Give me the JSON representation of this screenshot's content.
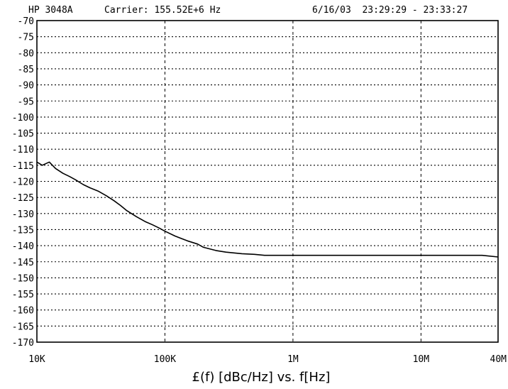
{
  "header": {
    "instrument": "HP 3048A",
    "carrier": "Carrier: 155.52E+6 Hz",
    "date_time": "6/16/03  23:29:29 - 23:33:27"
  },
  "chart_data": {
    "type": "line",
    "title": "",
    "xlabel": "£(f) [dBc/Hz] vs. f[Hz]",
    "ylabel": "",
    "x_scale": "log",
    "xlim": [
      10000,
      40000000
    ],
    "ylim": [
      -170,
      -70
    ],
    "grid": true,
    "y_ticks": [
      -70,
      -75,
      -80,
      -85,
      -90,
      -95,
      -100,
      -105,
      -110,
      -115,
      -120,
      -125,
      -130,
      -135,
      -140,
      -145,
      -150,
      -155,
      -160,
      -165,
      -170
    ],
    "x_ticks": [
      {
        "value": 10000,
        "label": "10K"
      },
      {
        "value": 100000,
        "label": "100K"
      },
      {
        "value": 1000000,
        "label": "1M"
      },
      {
        "value": 10000000,
        "label": "10M"
      },
      {
        "value": 40000000,
        "label": "40M"
      }
    ],
    "series": [
      {
        "x": [
          10000,
          11000,
          12500,
          14000,
          16000,
          18000,
          20000,
          23000,
          26000,
          30000,
          35000,
          40000,
          45000,
          50000,
          60000,
          70000,
          80000,
          90000,
          100000,
          120000,
          150000,
          180000,
          200000,
          250000,
          300000,
          400000,
          500000,
          600000,
          800000,
          1000000,
          1500000,
          2000000,
          3000000,
          5000000,
          7000000,
          10000000,
          15000000,
          20000000,
          30000000,
          40000000
        ],
        "y": [
          -114,
          -115,
          -114,
          -116,
          -117.5,
          -118.5,
          -119.5,
          -121,
          -122,
          -123,
          -124.5,
          -126,
          -127.5,
          -129,
          -131,
          -132.5,
          -133.5,
          -134.5,
          -135.5,
          -137,
          -138.5,
          -139.5,
          -140.5,
          -141.5,
          -142,
          -142.5,
          -142.7,
          -143,
          -143,
          -143,
          -143,
          -143,
          -143,
          -143,
          -143,
          -143,
          -143,
          -143,
          -143,
          -143.5
        ],
        "color": "#000000"
      }
    ]
  }
}
